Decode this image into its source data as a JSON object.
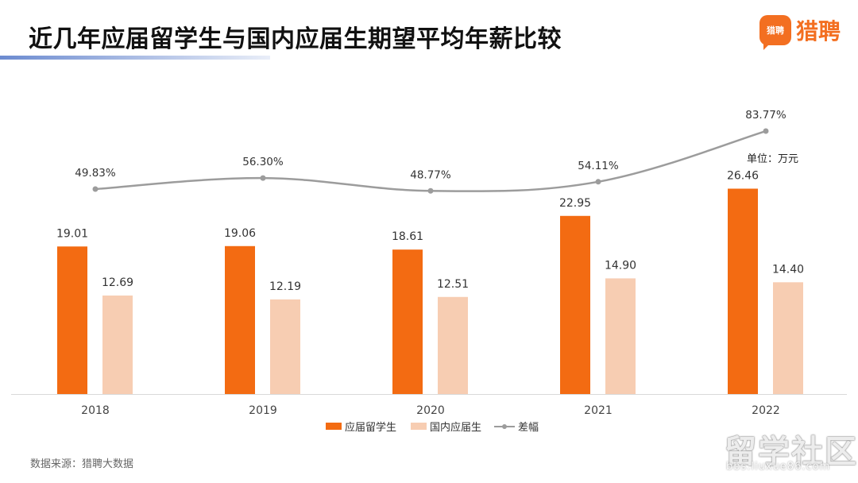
{
  "title": "近几年应届留学生与国内应届生期望平均年薪比较",
  "brand": {
    "logo_text": "猎聘",
    "name": "猎聘"
  },
  "unit": "单位：万元",
  "source": "数据来源：猎聘大数据",
  "watermark": {
    "text": "留学社区",
    "url": "bbs.liuxue86.com"
  },
  "colors": {
    "overseas": "#f36b12",
    "domestic": "#f7cdb2",
    "gap": "#9c9c9c"
  },
  "chart_data": {
    "type": "bar",
    "categories": [
      "2018",
      "2019",
      "2020",
      "2021",
      "2022"
    ],
    "series": [
      {
        "name": "应届留学生",
        "values": [
          19.01,
          19.06,
          18.61,
          22.95,
          26.46
        ],
        "labels": [
          "19.01",
          "19.06",
          "18.61",
          "22.95",
          "26.46"
        ]
      },
      {
        "name": "国内应届生",
        "values": [
          12.69,
          12.19,
          12.51,
          14.9,
          14.4
        ],
        "labels": [
          "12.69",
          "12.19",
          "12.51",
          "14.90",
          "14.40"
        ]
      }
    ],
    "line": {
      "name": "差幅",
      "type": "line",
      "values": [
        49.83,
        56.3,
        48.77,
        54.11,
        83.77
      ],
      "labels": [
        "49.83%",
        "56.30%",
        "48.77%",
        "54.11%",
        "83.77%"
      ]
    },
    "legend": [
      "应届留学生",
      "国内应届生",
      "差幅"
    ],
    "legend_position": "bottom",
    "grid": false
  }
}
